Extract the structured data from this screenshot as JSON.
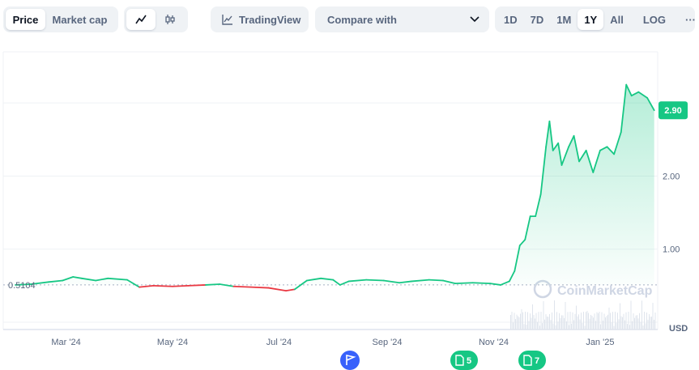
{
  "toolbar": {
    "price_label": "Price",
    "market_cap_label": "Market cap",
    "line_chart_icon": "line-chart-icon",
    "candle_chart_icon": "candlestick-icon",
    "tradingview_label": "TradingView",
    "tradingview_icon": "tradingview-icon",
    "compare_label": "Compare with",
    "ranges": [
      "1D",
      "7D",
      "1M",
      "1Y",
      "All"
    ],
    "active_range": "1Y",
    "log_label": "LOG",
    "more_label": "···"
  },
  "chart_data": {
    "type": "area",
    "currency": "USD",
    "baseline_value": 0.5104,
    "baseline_label": "0.5104",
    "current_value": 2.9,
    "current_label": "2.90",
    "y_ticks": [
      {
        "value": 1.0,
        "label": "1.00"
      },
      {
        "value": 2.0,
        "label": "2.00"
      }
    ],
    "x_ticks": [
      "Mar '24",
      "May '24",
      "Jul '24",
      "Sep '24",
      "Nov '24",
      "Jan '25"
    ],
    "y_axis_label": "USD",
    "watermark": "CoinMarketCap",
    "colors": {
      "up": "#16c784",
      "down": "#ea3943",
      "current_badge": "#16c784",
      "event_flag": "#3861fb"
    },
    "series": [
      {
        "x": "2024-02-01",
        "y": 0.51
      },
      {
        "x": "2024-02-10",
        "y": 0.52
      },
      {
        "x": "2024-02-20",
        "y": 0.55
      },
      {
        "x": "2024-02-28",
        "y": 0.57
      },
      {
        "x": "2024-03-05",
        "y": 0.62
      },
      {
        "x": "2024-03-10",
        "y": 0.6
      },
      {
        "x": "2024-03-18",
        "y": 0.57
      },
      {
        "x": "2024-03-25",
        "y": 0.6
      },
      {
        "x": "2024-04-05",
        "y": 0.58
      },
      {
        "x": "2024-04-12",
        "y": 0.48
      },
      {
        "x": "2024-04-20",
        "y": 0.5
      },
      {
        "x": "2024-05-01",
        "y": 0.49
      },
      {
        "x": "2024-05-10",
        "y": 0.5
      },
      {
        "x": "2024-05-20",
        "y": 0.51
      },
      {
        "x": "2024-05-28",
        "y": 0.52
      },
      {
        "x": "2024-06-05",
        "y": 0.49
      },
      {
        "x": "2024-06-15",
        "y": 0.48
      },
      {
        "x": "2024-06-25",
        "y": 0.47
      },
      {
        "x": "2024-07-05",
        "y": 0.43
      },
      {
        "x": "2024-07-10",
        "y": 0.45
      },
      {
        "x": "2024-07-17",
        "y": 0.57
      },
      {
        "x": "2024-07-25",
        "y": 0.6
      },
      {
        "x": "2024-08-01",
        "y": 0.58
      },
      {
        "x": "2024-08-05",
        "y": 0.51
      },
      {
        "x": "2024-08-10",
        "y": 0.56
      },
      {
        "x": "2024-08-20",
        "y": 0.58
      },
      {
        "x": "2024-08-30",
        "y": 0.57
      },
      {
        "x": "2024-09-08",
        "y": 0.54
      },
      {
        "x": "2024-09-15",
        "y": 0.56
      },
      {
        "x": "2024-09-25",
        "y": 0.58
      },
      {
        "x": "2024-10-03",
        "y": 0.57
      },
      {
        "x": "2024-10-10",
        "y": 0.53
      },
      {
        "x": "2024-10-20",
        "y": 0.54
      },
      {
        "x": "2024-10-30",
        "y": 0.53
      },
      {
        "x": "2024-11-05",
        "y": 0.51
      },
      {
        "x": "2024-11-10",
        "y": 0.56
      },
      {
        "x": "2024-11-13",
        "y": 0.7
      },
      {
        "x": "2024-11-16",
        "y": 1.05
      },
      {
        "x": "2024-11-19",
        "y": 1.13
      },
      {
        "x": "2024-11-22",
        "y": 1.45
      },
      {
        "x": "2024-11-25",
        "y": 1.45
      },
      {
        "x": "2024-11-28",
        "y": 1.75
      },
      {
        "x": "2024-12-01",
        "y": 2.4
      },
      {
        "x": "2024-12-03",
        "y": 2.75
      },
      {
        "x": "2024-12-05",
        "y": 2.35
      },
      {
        "x": "2024-12-08",
        "y": 2.45
      },
      {
        "x": "2024-12-10",
        "y": 2.15
      },
      {
        "x": "2024-12-14",
        "y": 2.4
      },
      {
        "x": "2024-12-17",
        "y": 2.55
      },
      {
        "x": "2024-12-20",
        "y": 2.2
      },
      {
        "x": "2024-12-24",
        "y": 2.35
      },
      {
        "x": "2024-12-28",
        "y": 2.05
      },
      {
        "x": "2025-01-01",
        "y": 2.35
      },
      {
        "x": "2025-01-05",
        "y": 2.4
      },
      {
        "x": "2025-01-09",
        "y": 2.3
      },
      {
        "x": "2025-01-13",
        "y": 2.6
      },
      {
        "x": "2025-01-16",
        "y": 3.25
      },
      {
        "x": "2025-01-19",
        "y": 3.1
      },
      {
        "x": "2025-01-23",
        "y": 3.15
      },
      {
        "x": "2025-01-28",
        "y": 3.07
      },
      {
        "x": "2025-02-01",
        "y": 2.9
      }
    ],
    "events": [
      {
        "type": "flag",
        "label": ""
      },
      {
        "type": "news",
        "label": "5"
      },
      {
        "type": "news",
        "label": "7"
      }
    ]
  }
}
